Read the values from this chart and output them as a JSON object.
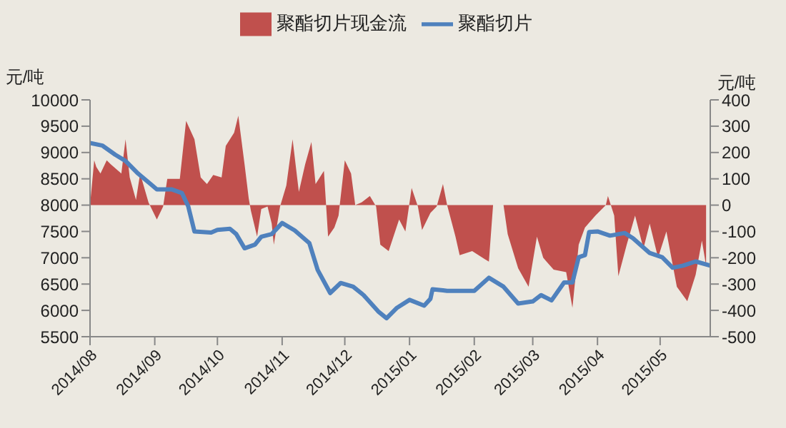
{
  "chart_data": {
    "type": "line",
    "ylabel": "元/吨",
    "y2label": "元/吨",
    "legend": "top",
    "xlim": [
      "2014-08-01",
      "2015-05-25"
    ],
    "xticks": [
      {
        "value": "2014-08",
        "label": "2014/08"
      },
      {
        "value": "2014-09",
        "label": "2014/09"
      },
      {
        "value": "2014-10",
        "label": "2014/10"
      },
      {
        "value": "2014-11",
        "label": "2014/11"
      },
      {
        "value": "2014-12",
        "label": "2014/12"
      },
      {
        "value": "2015-01",
        "label": "2015/01"
      },
      {
        "value": "2015-02",
        "label": "2015/02"
      },
      {
        "value": "2015-03",
        "label": "2015/03"
      },
      {
        "value": "2015-04",
        "label": "2015/04"
      },
      {
        "value": "2015-05",
        "label": "2015/05"
      }
    ],
    "ylim": [
      5500,
      10000
    ],
    "yticks": [
      5500,
      6000,
      6500,
      7000,
      7500,
      8000,
      8500,
      9000,
      9500,
      10000
    ],
    "y2lim": [
      -500,
      400
    ],
    "y2ticks": [
      -500,
      -400,
      -300,
      -200,
      -100,
      0,
      100,
      200,
      300,
      400
    ],
    "series": [
      {
        "name": "聚酯切片现金流",
        "type": "area",
        "axis": "y2",
        "color": "#c0504d",
        "x": [
          "2014-08-01",
          "2014-08-03",
          "2014-08-04",
          "2014-08-06",
          "2014-08-09",
          "2014-08-11",
          "2014-08-16",
          "2014-08-18",
          "2014-08-20",
          "2014-08-23",
          "2014-08-25",
          "2014-08-29",
          "2014-09-02",
          "2014-09-05",
          "2014-09-07",
          "2014-09-13",
          "2014-09-16",
          "2014-09-20",
          "2014-09-23",
          "2014-09-26",
          "2014-09-29",
          "2014-10-03",
          "2014-10-05",
          "2014-10-09",
          "2014-10-11",
          "2014-10-14",
          "2014-10-16",
          "2014-10-17",
          "2014-10-20",
          "2014-10-22",
          "2014-10-25",
          "2014-10-27",
          "2014-10-28",
          "2014-10-31",
          "2014-11-03",
          "2014-11-06",
          "2014-11-09",
          "2014-11-12",
          "2014-11-15",
          "2014-11-17",
          "2014-11-21",
          "2014-11-23",
          "2014-11-26",
          "2014-11-28",
          "2014-12-01",
          "2014-12-04",
          "2014-12-06",
          "2014-12-09",
          "2014-12-13",
          "2014-12-16",
          "2014-12-18",
          "2014-12-22",
          "2014-12-27",
          "2014-12-30",
          "2015-01-02",
          "2015-01-05",
          "2015-01-07",
          "2015-01-11",
          "2015-01-14",
          "2015-01-17",
          "2015-01-19",
          "2015-01-23",
          "2015-01-25",
          "2015-01-31",
          "2015-02-06",
          "2015-02-08",
          "2015-02-10",
          "2015-02-15",
          "2015-02-17",
          "2015-02-22",
          "2015-02-27",
          "2015-03-03",
          "2015-03-06",
          "2015-03-11",
          "2015-03-17",
          "2015-03-20",
          "2015-03-23",
          "2015-03-26",
          "2015-03-31",
          "2015-04-05",
          "2015-04-06",
          "2015-04-09",
          "2015-04-11",
          "2015-04-15",
          "2015-04-19",
          "2015-04-23",
          "2015-04-26",
          "2015-04-30",
          "2015-05-04",
          "2015-05-09",
          "2015-05-14",
          "2015-05-18",
          "2015-05-21",
          "2015-05-23"
        ],
        "values": [
          0,
          170,
          145,
          120,
          170,
          155,
          120,
          250,
          105,
          20,
          120,
          10,
          -55,
          -5,
          100,
          100,
          320,
          250,
          105,
          80,
          115,
          105,
          225,
          275,
          340,
          155,
          25,
          -20,
          -120,
          -15,
          -5,
          -70,
          -150,
          -5,
          75,
          250,
          50,
          155,
          240,
          80,
          130,
          -120,
          -85,
          -40,
          170,
          120,
          0,
          10,
          35,
          -5,
          -150,
          -175,
          -55,
          -100,
          65,
          -5,
          -95,
          -30,
          -5,
          80,
          0,
          -120,
          -190,
          -175,
          -205,
          -215,
          0,
          0,
          -110,
          -240,
          -310,
          -120,
          -200,
          -245,
          -255,
          -390,
          -150,
          -85,
          -40,
          0,
          35,
          -40,
          -270,
          -150,
          -40,
          -165,
          -70,
          -200,
          -100,
          -310,
          -365,
          -265,
          -135,
          -230
        ]
      },
      {
        "name": "聚酯切片",
        "color": "#4f81bd",
        "x": [
          "2014-08-01",
          "2014-08-07",
          "2014-08-13",
          "2014-08-18",
          "2014-08-24",
          "2014-08-30",
          "2014-09-02",
          "2014-09-09",
          "2014-09-14",
          "2014-09-17",
          "2014-09-20",
          "2014-09-28",
          "2014-10-01",
          "2014-10-07",
          "2014-10-10",
          "2014-10-14",
          "2014-10-19",
          "2014-10-22",
          "2014-10-27",
          "2014-11-01",
          "2014-11-07",
          "2014-11-14",
          "2014-11-18",
          "2014-11-24",
          "2014-11-29",
          "2014-12-05",
          "2014-12-10",
          "2014-12-17",
          "2014-12-21",
          "2014-12-26",
          "2015-01-01",
          "2015-01-08",
          "2015-01-11",
          "2015-01-12",
          "2015-01-17",
          "2015-01-19",
          "2015-02-01",
          "2015-02-08",
          "2015-02-15",
          "2015-02-22",
          "2015-03-01",
          "2015-03-05",
          "2015-03-10",
          "2015-03-16",
          "2015-03-20",
          "2015-03-23",
          "2015-03-26",
          "2015-03-28",
          "2015-04-01",
          "2015-04-07",
          "2015-04-14",
          "2015-04-18",
          "2015-04-26",
          "2015-05-02",
          "2015-05-07",
          "2015-05-12",
          "2015-05-18",
          "2015-05-25"
        ],
        "values": [
          9180,
          9130,
          8960,
          8840,
          8600,
          8400,
          8300,
          8300,
          8230,
          7980,
          7500,
          7480,
          7530,
          7550,
          7450,
          7180,
          7250,
          7400,
          7450,
          7660,
          7520,
          7280,
          6770,
          6330,
          6520,
          6450,
          6290,
          5980,
          5850,
          6050,
          6200,
          6090,
          6220,
          6400,
          6380,
          6370,
          6370,
          6620,
          6450,
          6130,
          6170,
          6290,
          6190,
          6530,
          6530,
          7010,
          7050,
          7490,
          7500,
          7420,
          7470,
          7370,
          7090,
          7010,
          6810,
          6850,
          6930,
          6850
        ]
      }
    ]
  }
}
